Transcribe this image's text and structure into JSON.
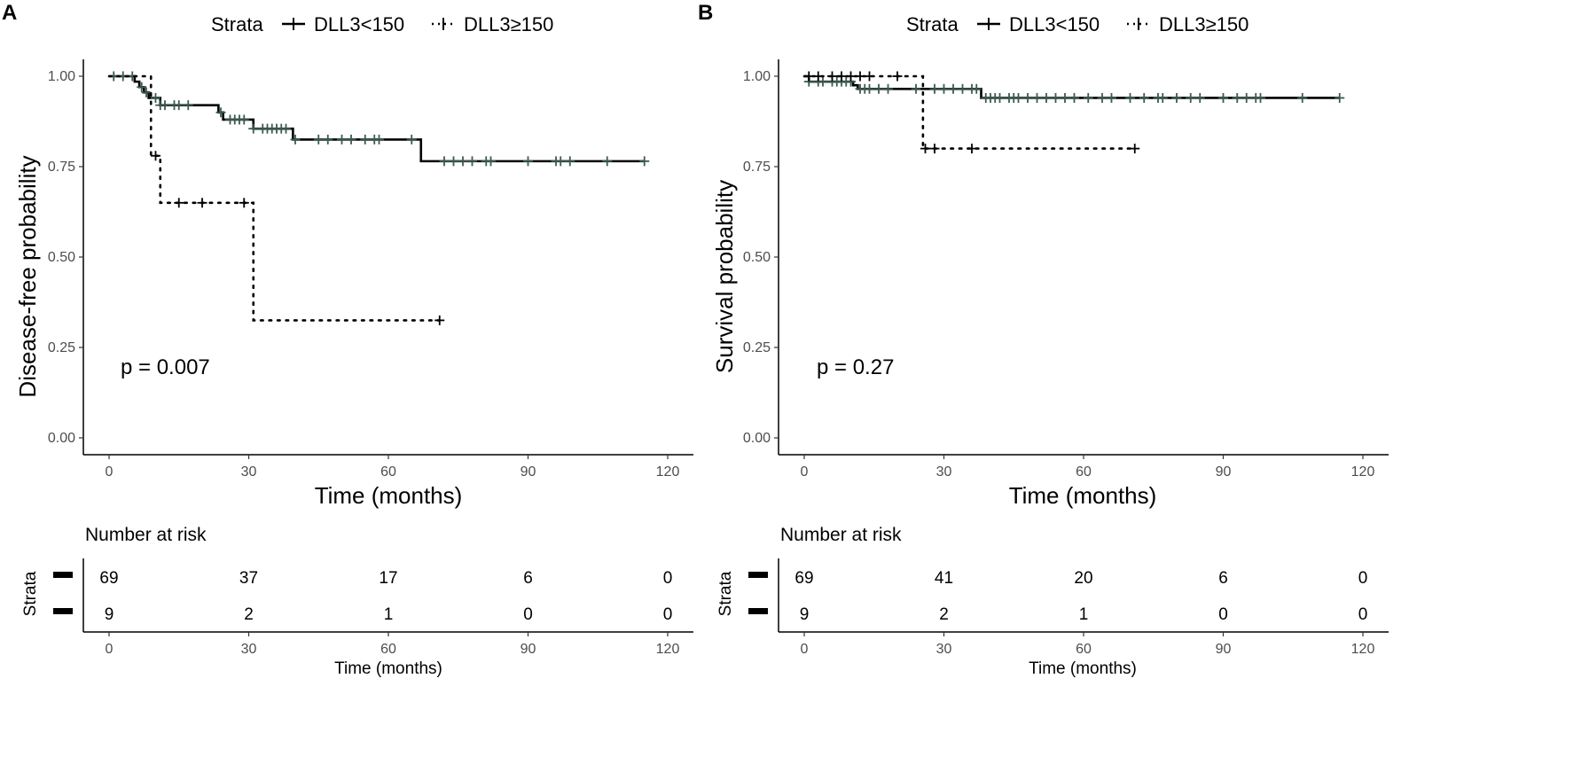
{
  "panels": [
    {
      "letter": "A",
      "legend": {
        "title": "Strata",
        "labels": [
          "DLL3<150",
          "DLL3≥150"
        ]
      },
      "p_text": "p = 0.007",
      "number_at_risk": {
        "title": "Number at risk",
        "strata_label": "Strata",
        "rows": [
          [
            "69",
            "37",
            "17",
            "6",
            "0"
          ],
          [
            "9",
            "2",
            "1",
            "0",
            "0"
          ]
        ],
        "xlabel": "Time (months)"
      }
    },
    {
      "letter": "B",
      "legend": {
        "title": "Strata",
        "labels": [
          "DLL3<150",
          "DLL3≥150"
        ]
      },
      "p_text": "p = 0.27",
      "number_at_risk": {
        "title": "Number at risk",
        "strata_label": "Strata",
        "rows": [
          [
            "69",
            "41",
            "20",
            "6",
            "0"
          ],
          [
            "9",
            "2",
            "1",
            "0",
            "0"
          ]
        ],
        "xlabel": "Time (months)"
      }
    }
  ],
  "chart_data": [
    {
      "type": "line",
      "subtype": "kaplan-meier",
      "title": "",
      "xlabel": "Time (months)",
      "ylabel": "Disease-free probability",
      "xlim": [
        0,
        120
      ],
      "ylim": [
        0,
        1
      ],
      "x_ticks": [
        0,
        30,
        60,
        90,
        120
      ],
      "y_ticks": [
        0.0,
        0.25,
        0.5,
        0.75,
        1.0
      ],
      "x_tick_labels": [
        "0",
        "30",
        "60",
        "90",
        "120"
      ],
      "y_tick_labels": [
        "0.00",
        "0.25",
        "0.50",
        "0.75",
        "1.00"
      ],
      "series": [
        {
          "name": "DLL3<150",
          "style": "solid",
          "steps": [
            [
              0,
              1.0
            ],
            [
              5.5,
              0.985
            ],
            [
              6.5,
              0.97
            ],
            [
              7.5,
              0.955
            ],
            [
              8.5,
              0.94
            ],
            [
              11,
              0.92
            ],
            [
              23.5,
              0.9
            ],
            [
              24.5,
              0.88
            ],
            [
              31,
              0.855
            ],
            [
              39.5,
              0.825
            ],
            [
              67,
              0.765
            ],
            [
              115,
              0.765
            ]
          ],
          "censor_times": [
            1,
            3,
            5,
            7,
            8,
            10,
            11,
            12,
            14,
            15,
            17,
            24,
            26,
            27,
            28,
            29,
            31,
            33,
            34,
            35,
            36,
            37,
            38,
            40,
            45,
            47,
            50,
            52,
            55,
            57,
            58,
            65,
            72,
            74,
            76,
            78,
            81,
            82,
            90,
            96,
            97,
            99,
            107,
            115
          ]
        },
        {
          "name": "DLL3≥150",
          "style": "dotted",
          "steps": [
            [
              0,
              1.0
            ],
            [
              8.5,
              1.0
            ],
            [
              9,
              0.78
            ],
            [
              11,
              0.65
            ],
            [
              31,
              0.325
            ],
            [
              71,
              0.325
            ]
          ],
          "censor_times": [
            10,
            15,
            20,
            29,
            71
          ]
        }
      ]
    },
    {
      "type": "line",
      "subtype": "kaplan-meier",
      "title": "",
      "xlabel": "Time (months)",
      "ylabel": "Survival probability",
      "xlim": [
        0,
        120
      ],
      "ylim": [
        0,
        1
      ],
      "x_ticks": [
        0,
        30,
        60,
        90,
        120
      ],
      "y_ticks": [
        0.0,
        0.25,
        0.5,
        0.75,
        1.0
      ],
      "x_tick_labels": [
        "0",
        "30",
        "60",
        "90",
        "120"
      ],
      "y_tick_labels": [
        "0.00",
        "0.25",
        "0.50",
        "0.75",
        "1.00"
      ],
      "series": [
        {
          "name": "DLL3<150",
          "style": "solid",
          "steps": [
            [
              0,
              1.0
            ],
            [
              1,
              0.985
            ],
            [
              10.5,
              0.975
            ],
            [
              11.5,
              0.965
            ],
            [
              38,
              0.94
            ],
            [
              115,
              0.94
            ]
          ],
          "censor_times": [
            1,
            3,
            4,
            6,
            7,
            8,
            9,
            10,
            12,
            13,
            14,
            16,
            18,
            24,
            28,
            30,
            32,
            34,
            36,
            37,
            39,
            40,
            41,
            42,
            44,
            45,
            46,
            48,
            50,
            52,
            54,
            56,
            58,
            61,
            64,
            66,
            70,
            73,
            76,
            77,
            80,
            83,
            85,
            90,
            93,
            95,
            97,
            98,
            107,
            115
          ]
        },
        {
          "name": "DLL3≥150",
          "style": "dotted",
          "steps": [
            [
              0,
              1.0
            ],
            [
              25,
              1.0
            ],
            [
              25.5,
              0.8
            ],
            [
              71,
              0.8
            ]
          ],
          "censor_times": [
            1,
            3,
            6,
            8,
            10,
            12,
            14,
            20,
            26,
            28,
            36,
            71
          ]
        }
      ]
    }
  ]
}
